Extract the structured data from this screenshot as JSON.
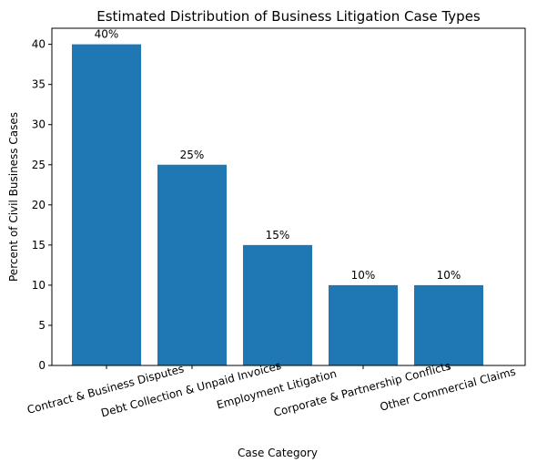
{
  "chart_data": {
    "type": "bar",
    "title": "Estimated Distribution of Business Litigation Case Types",
    "xlabel": "Case Category",
    "ylabel": "Percent of Civil Business Cases",
    "categories": [
      "Contract & Business Disputes",
      "Debt Collection & Unpaid Invoices",
      "Employment Litigation",
      "Corporate & Partnership Conflicts",
      "Other Commercial Claims"
    ],
    "values": [
      40,
      25,
      15,
      10,
      10
    ],
    "data_labels": [
      "40%",
      "25%",
      "15%",
      "10%",
      "10%"
    ],
    "ylim": [
      0,
      42
    ],
    "yticks": [
      0,
      5,
      10,
      15,
      20,
      25,
      30,
      35,
      40
    ],
    "grid": false,
    "bar_color": "#1f77b4",
    "x_tick_rotation_deg": 15
  }
}
